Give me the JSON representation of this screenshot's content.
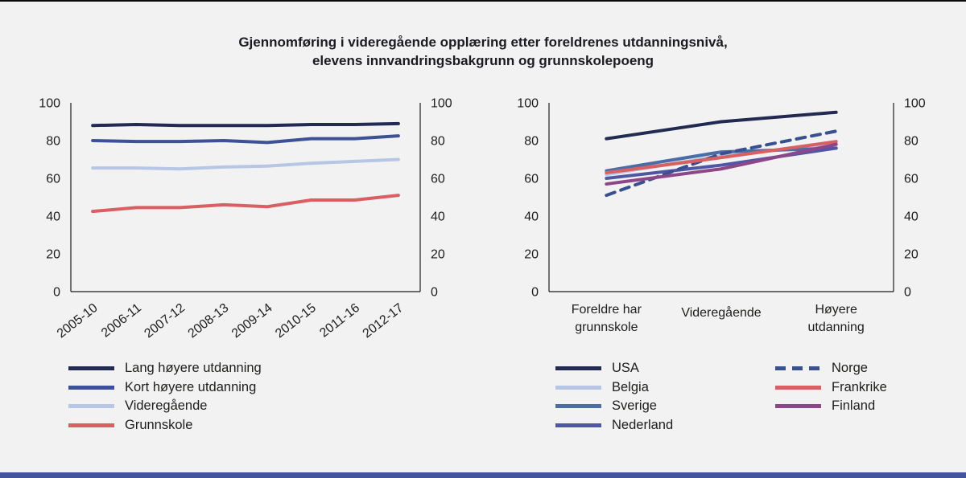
{
  "title_line1": "Gjennomføring i videregående opplæring etter foreldrenes utdanningsnivå,",
  "title_line2": "elevens innvandringsbakgrunn og grunnskolepoeng",
  "colors": {
    "background": "#f2f2f2",
    "top_rule": "#0a0a0a",
    "bottom_rule": "#44549c",
    "axis": "#1d1d1b"
  },
  "chart_data": [
    {
      "type": "line",
      "title": "",
      "xlabel": "",
      "ylabel": "",
      "ylim": [
        0,
        100
      ],
      "yticks": [
        0,
        20,
        40,
        60,
        80,
        100
      ],
      "grid": false,
      "legend_position": "bottom-left",
      "categories": [
        "2005-10",
        "2006-11",
        "2007-12",
        "2008-13",
        "2009-14",
        "2010-15",
        "2011-16",
        "2012-17"
      ],
      "series": [
        {
          "name": "Lang høyere utdanning",
          "color": "#232a52",
          "values": [
            88,
            88.5,
            88,
            88,
            88,
            88.5,
            88.5,
            89
          ]
        },
        {
          "name": "Kort høyere utdanning",
          "color": "#3d5294",
          "values": [
            80,
            79.5,
            79.5,
            80,
            79,
            81,
            81,
            82.5
          ]
        },
        {
          "name": "Videregående",
          "color": "#b7c6e5",
          "values": [
            65.5,
            65.5,
            65,
            66,
            66.5,
            68,
            69,
            70
          ]
        },
        {
          "name": "Grunnskole",
          "color": "#d95f62",
          "values": [
            42.5,
            44.5,
            44.5,
            46,
            45,
            48.5,
            48.5,
            51
          ]
        }
      ]
    },
    {
      "type": "line",
      "title": "",
      "xlabel": "",
      "ylabel": "",
      "ylim": [
        0,
        100
      ],
      "yticks": [
        0,
        20,
        40,
        60,
        80,
        100
      ],
      "grid": false,
      "legend_position": "bottom-two-columns",
      "categories": [
        "Foreldre har\ngrunnskole",
        "Videregående",
        "Høyere\nutdanning"
      ],
      "series": [
        {
          "name": "USA",
          "color": "#232a52",
          "values": [
            81,
            90,
            95
          ]
        },
        {
          "name": "Belgia",
          "color": "#b7c6e5",
          "values": [
            62,
            72,
            78
          ]
        },
        {
          "name": "Sverige",
          "color": "#4a6da7",
          "values": [
            64,
            74,
            76
          ]
        },
        {
          "name": "Nederland",
          "color": "#4f57a5",
          "values": [
            60,
            67,
            76
          ]
        },
        {
          "name": "Norge",
          "color": "#39508f",
          "dash": true,
          "values": [
            51,
            73,
            85
          ]
        },
        {
          "name": "Frankrike",
          "color": "#d95f62",
          "values": [
            63,
            71,
            79.5
          ]
        },
        {
          "name": "Finland",
          "color": "#8d4687",
          "values": [
            57,
            65,
            78
          ]
        }
      ]
    }
  ]
}
